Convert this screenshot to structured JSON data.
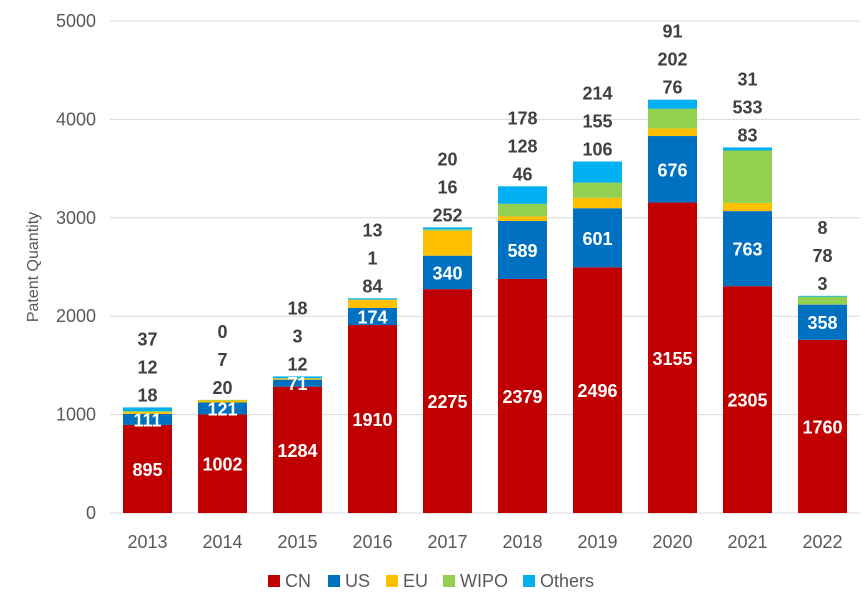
{
  "chart_data": {
    "type": "bar",
    "stacked": true,
    "title": "",
    "xlabel": "",
    "ylabel": "Patent Quantity",
    "ylim": [
      0,
      5000
    ],
    "yticks": [
      0,
      1000,
      2000,
      3000,
      4000,
      5000
    ],
    "grid": true,
    "legend_position": "bottom",
    "categories": [
      "2013",
      "2014",
      "2015",
      "2016",
      "2017",
      "2018",
      "2019",
      "2020",
      "2021",
      "2022"
    ],
    "series": [
      {
        "name": "CN",
        "color": "#C00000",
        "values": [
          895,
          1002,
          1284,
          1910,
          2275,
          2379,
          2496,
          3155,
          2305,
          1760
        ]
      },
      {
        "name": "US",
        "color": "#0070C0",
        "values": [
          111,
          121,
          71,
          174,
          340,
          589,
          601,
          676,
          763,
          358
        ]
      },
      {
        "name": "EU",
        "color": "#FFC000",
        "values": [
          18,
          20,
          12,
          84,
          252,
          46,
          106,
          76,
          83,
          3
        ]
      },
      {
        "name": "WIPO",
        "color": "#92D050",
        "values": [
          12,
          7,
          3,
          1,
          16,
          128,
          155,
          202,
          533,
          78
        ]
      },
      {
        "name": "Others",
        "color": "#00B0F0",
        "values": [
          37,
          0,
          18,
          13,
          20,
          178,
          214,
          91,
          31,
          8
        ]
      }
    ]
  }
}
